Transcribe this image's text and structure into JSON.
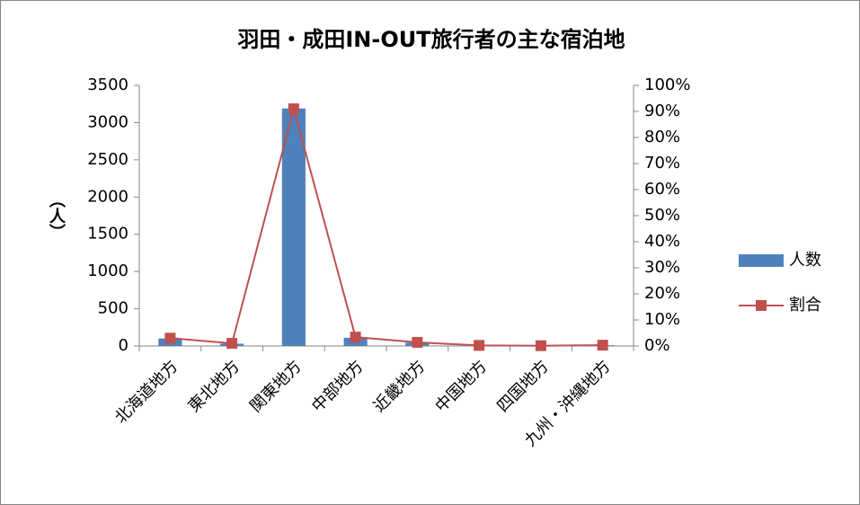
{
  "chart_data": {
    "type": "bar",
    "title": "羽田・成田IN-OUT旅行者の主な宿泊地",
    "y_label": "（人）",
    "categories": [
      "北海道地方",
      "東北地方",
      "関東地方",
      "中部地方",
      "近畿地方",
      "中国地方",
      "四国地方",
      "九州・沖縄地方"
    ],
    "series": [
      {
        "name": "人数",
        "type": "bar",
        "color": "#4f81bd",
        "values": [
          100,
          30,
          3190,
          110,
          45,
          8,
          3,
          10
        ]
      },
      {
        "name": "割合",
        "type": "line",
        "axis": "y2",
        "color": "#c0504d",
        "values": [
          3,
          1,
          91,
          3.4,
          1.4,
          0.2,
          0.1,
          0.3
        ]
      }
    ],
    "ylim": [
      0,
      3500
    ],
    "yticks": [
      0,
      500,
      1000,
      1500,
      2000,
      2500,
      3000,
      3500
    ],
    "y2lim": [
      0,
      100
    ],
    "y2ticks": [
      {
        "value": 0,
        "label": "0%"
      },
      {
        "value": 10,
        "label": "10%"
      },
      {
        "value": 20,
        "label": "20%"
      },
      {
        "value": 30,
        "label": "30%"
      },
      {
        "value": 40,
        "label": "40%"
      },
      {
        "value": 50,
        "label": "50%"
      },
      {
        "value": 60,
        "label": "60%"
      },
      {
        "value": 70,
        "label": "70%"
      },
      {
        "value": 80,
        "label": "80%"
      },
      {
        "value": 90,
        "label": "90%"
      },
      {
        "value": 100,
        "label": "100%"
      }
    ],
    "legend": "right"
  }
}
